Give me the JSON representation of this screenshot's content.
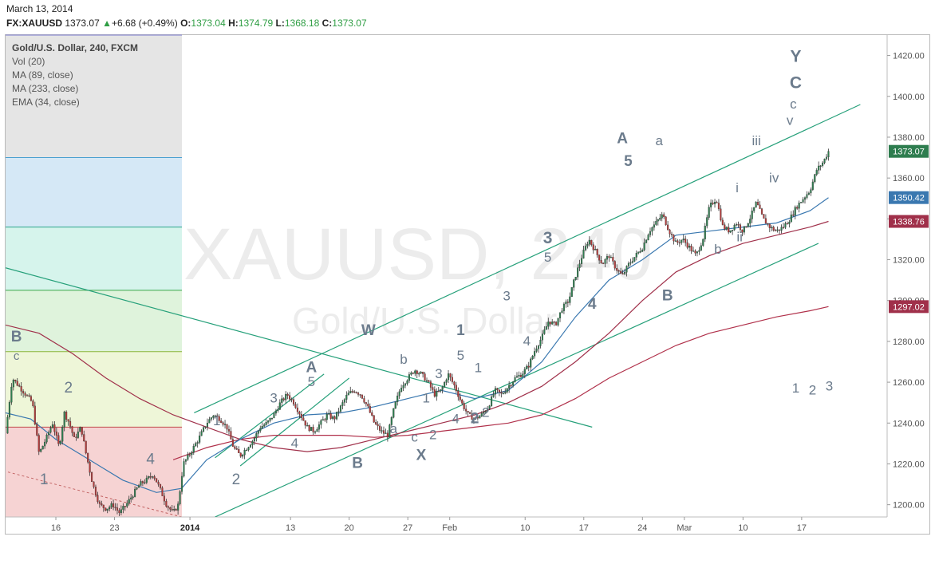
{
  "header": {
    "date": "March 13, 2014",
    "symbol": "FX:XAUUSD",
    "last": "1373.07",
    "change": "+6.68 (+0.49%)",
    "open_label": "O:",
    "open": "1373.04",
    "high_label": "H:",
    "high": "1374.79",
    "low_label": "L:",
    "low": "1368.18",
    "close_label": "C:",
    "close": "1373.07"
  },
  "legend": {
    "title": "Gold/U.S. Dollar, 240, FXCM",
    "indicators": [
      "Vol (20)",
      "MA (89, close)",
      "MA (233, close)",
      "EMA (34, close)"
    ]
  },
  "watermark": {
    "symbol": "XAUUSD, 240",
    "name": "Gold/U.S. Dollar"
  },
  "colors": {
    "up": "#2e7d4f",
    "down": "#b33a3a",
    "ma89": "#a0304a",
    "ma233": "#b0304a",
    "ema34": "#3a78b0",
    "channel": "#26a07a",
    "label": "#6b7b8c"
  },
  "chart_data": {
    "type": "candlestick",
    "y_range": [
      1194,
      1430
    ],
    "x_axis_start_label": "Dec 10 2013",
    "y_ticks": [
      1200,
      1220,
      1240,
      1260,
      1280,
      1300,
      1320,
      1340,
      1360,
      1380,
      1400,
      1420
    ],
    "x_ticks": [
      {
        "label": "16",
        "t": 6
      },
      {
        "label": "23",
        "t": 13
      },
      {
        "label": "2014",
        "t": 22,
        "bold": true
      },
      {
        "label": "13",
        "t": 34
      },
      {
        "label": "20",
        "t": 41
      },
      {
        "label": "27",
        "t": 48
      },
      {
        "label": "Feb",
        "t": 53
      },
      {
        "label": "10",
        "t": 62
      },
      {
        "label": "17",
        "t": 69
      },
      {
        "label": "24",
        "t": 76
      },
      {
        "label": "Mar",
        "t": 81
      },
      {
        "label": "10",
        "t": 88
      },
      {
        "label": "17",
        "t": 95
      }
    ],
    "price_labels": [
      {
        "value": 1373.07,
        "text": "1373.07",
        "color": "#2e7d4f"
      },
      {
        "value": 1350.42,
        "text": "1350.42",
        "color": "#3a78b0"
      },
      {
        "value": 1338.76,
        "text": "1338.76",
        "color": "#a0304a"
      },
      {
        "value": 1297.02,
        "text": "1297.02",
        "color": "#a0304a"
      }
    ],
    "close_path": [
      [
        0,
        1235
      ],
      [
        0.8,
        1262
      ],
      [
        1.6,
        1258
      ],
      [
        2.4,
        1254
      ],
      [
        3.2,
        1250
      ],
      [
        4,
        1225
      ],
      [
        4.8,
        1232
      ],
      [
        5.6,
        1240
      ],
      [
        6.4,
        1228
      ],
      [
        7,
        1245
      ],
      [
        7.6,
        1240
      ],
      [
        8.2,
        1232
      ],
      [
        9,
        1238
      ],
      [
        9.6,
        1225
      ],
      [
        10.4,
        1210
      ],
      [
        11.2,
        1200
      ],
      [
        12,
        1198
      ],
      [
        12.8,
        1200
      ],
      [
        13.6,
        1196
      ],
      [
        14.4,
        1200
      ],
      [
        15.2,
        1205
      ],
      [
        16,
        1210
      ],
      [
        16.8,
        1212
      ],
      [
        17.6,
        1215
      ],
      [
        18.4,
        1208
      ],
      [
        19.2,
        1200
      ],
      [
        20,
        1196
      ],
      [
        20.6,
        1200
      ],
      [
        21.2,
        1220
      ],
      [
        22,
        1225
      ],
      [
        23,
        1232
      ],
      [
        24,
        1240
      ],
      [
        24.8,
        1244
      ],
      [
        25.6,
        1242
      ],
      [
        26.4,
        1238
      ],
      [
        27.2,
        1228
      ],
      [
        28,
        1224
      ],
      [
        28.8,
        1228
      ],
      [
        29.6,
        1232
      ],
      [
        30.4,
        1238
      ],
      [
        31.2,
        1240
      ],
      [
        32,
        1244
      ],
      [
        32.8,
        1250
      ],
      [
        33.6,
        1254
      ],
      [
        34.4,
        1250
      ],
      [
        35.2,
        1244
      ],
      [
        36,
        1238
      ],
      [
        36.8,
        1236
      ],
      [
        37.6,
        1240
      ],
      [
        38.4,
        1244
      ],
      [
        39.2,
        1242
      ],
      [
        40,
        1248
      ],
      [
        40.8,
        1254
      ],
      [
        41.6,
        1256
      ],
      [
        42.4,
        1254
      ],
      [
        43.2,
        1248
      ],
      [
        44,
        1240
      ],
      [
        44.8,
        1236
      ],
      [
        45.6,
        1234
      ],
      [
        46.4,
        1248
      ],
      [
        47.2,
        1258
      ],
      [
        48,
        1262
      ],
      [
        48.8,
        1266
      ],
      [
        49.6,
        1264
      ],
      [
        50.4,
        1260
      ],
      [
        51.2,
        1254
      ],
      [
        52,
        1256
      ],
      [
        52.8,
        1264
      ],
      [
        53.6,
        1258
      ],
      [
        54.4,
        1250
      ],
      [
        55.2,
        1244
      ],
      [
        56,
        1242
      ],
      [
        56.8,
        1244
      ],
      [
        57.6,
        1248
      ],
      [
        58.4,
        1256
      ],
      [
        59.2,
        1254
      ],
      [
        60,
        1258
      ],
      [
        60.8,
        1262
      ],
      [
        61.6,
        1264
      ],
      [
        62.4,
        1268
      ],
      [
        63.2,
        1276
      ],
      [
        64,
        1282
      ],
      [
        64.8,
        1290
      ],
      [
        65.6,
        1288
      ],
      [
        66.4,
        1296
      ],
      [
        67.2,
        1300
      ],
      [
        68,
        1312
      ],
      [
        68.8,
        1322
      ],
      [
        69.6,
        1330
      ],
      [
        70.4,
        1324
      ],
      [
        71.2,
        1318
      ],
      [
        72,
        1322
      ],
      [
        72.8,
        1316
      ],
      [
        73.6,
        1312
      ],
      [
        74.4,
        1318
      ],
      [
        75.2,
        1322
      ],
      [
        76,
        1326
      ],
      [
        76.8,
        1334
      ],
      [
        77.6,
        1338
      ],
      [
        78.4,
        1342
      ],
      [
        79.2,
        1334
      ],
      [
        80,
        1328
      ],
      [
        80.8,
        1330
      ],
      [
        81.6,
        1326
      ],
      [
        82.4,
        1322
      ],
      [
        83.2,
        1330
      ],
      [
        84,
        1346
      ],
      [
        84.8,
        1350
      ],
      [
        85.6,
        1336
      ],
      [
        86.4,
        1334
      ],
      [
        87.2,
        1338
      ],
      [
        88,
        1334
      ],
      [
        88.8,
        1340
      ],
      [
        89.6,
        1348
      ],
      [
        90.4,
        1340
      ],
      [
        91.2,
        1336
      ],
      [
        92,
        1334
      ],
      [
        92.8,
        1336
      ],
      [
        93.6,
        1340
      ],
      [
        94.4,
        1346
      ],
      [
        95.2,
        1350
      ],
      [
        96,
        1354
      ],
      [
        96.8,
        1364
      ],
      [
        97.6,
        1368
      ],
      [
        98.2,
        1373.07
      ]
    ],
    "ema34": [
      [
        0,
        1245
      ],
      [
        3,
        1242
      ],
      [
        6,
        1232
      ],
      [
        10,
        1222
      ],
      [
        14,
        1212
      ],
      [
        18,
        1206
      ],
      [
        21,
        1208
      ],
      [
        24,
        1222
      ],
      [
        28,
        1232
      ],
      [
        32,
        1240
      ],
      [
        36,
        1244
      ],
      [
        40,
        1245
      ],
      [
        44,
        1248
      ],
      [
        48,
        1252
      ],
      [
        52,
        1256
      ],
      [
        56,
        1252
      ],
      [
        60,
        1256
      ],
      [
        64,
        1270
      ],
      [
        68,
        1292
      ],
      [
        72,
        1310
      ],
      [
        76,
        1320
      ],
      [
        80,
        1332
      ],
      [
        84,
        1334
      ],
      [
        88,
        1336
      ],
      [
        92,
        1338
      ],
      [
        96,
        1344
      ],
      [
        98.2,
        1350.42
      ]
    ],
    "ma89": [
      [
        0,
        1288
      ],
      [
        4,
        1284
      ],
      [
        8,
        1274
      ],
      [
        12,
        1262
      ],
      [
        16,
        1252
      ],
      [
        20,
        1244
      ],
      [
        24,
        1238
      ],
      [
        28,
        1232
      ],
      [
        32,
        1228
      ],
      [
        36,
        1226
      ],
      [
        40,
        1228
      ],
      [
        44,
        1232
      ],
      [
        48,
        1236
      ],
      [
        52,
        1240
      ],
      [
        56,
        1244
      ],
      [
        60,
        1250
      ],
      [
        64,
        1258
      ],
      [
        68,
        1270
      ],
      [
        72,
        1284
      ],
      [
        76,
        1300
      ],
      [
        80,
        1314
      ],
      [
        84,
        1322
      ],
      [
        88,
        1328
      ],
      [
        92,
        1332
      ],
      [
        96,
        1336
      ],
      [
        98.2,
        1338.76
      ]
    ],
    "ma233": [
      [
        20,
        1222
      ],
      [
        24,
        1228
      ],
      [
        28,
        1232
      ],
      [
        32,
        1234
      ],
      [
        36,
        1234
      ],
      [
        40,
        1234
      ],
      [
        44,
        1233
      ],
      [
        48,
        1234
      ],
      [
        52,
        1236
      ],
      [
        56,
        1238
      ],
      [
        60,
        1240
      ],
      [
        64,
        1244
      ],
      [
        68,
        1252
      ],
      [
        72,
        1262
      ],
      [
        76,
        1270
      ],
      [
        80,
        1278
      ],
      [
        84,
        1284
      ],
      [
        88,
        1288
      ],
      [
        92,
        1292
      ],
      [
        96,
        1295
      ],
      [
        98.2,
        1297.02
      ]
    ],
    "channel_lines": [
      [
        [
          22.5,
          1245
        ],
        [
          102,
          1396
        ]
      ],
      [
        [
          25,
          1194
        ],
        [
          97,
          1328
        ]
      ],
      [
        [
          0,
          1316
        ],
        [
          70,
          1238
        ]
      ],
      [
        [
          25,
          1223
        ],
        [
          38,
          1264
        ]
      ],
      [
        [
          28,
          1219
        ],
        [
          41,
          1262
        ]
      ]
    ],
    "fib_levels": [
      1430,
      1370,
      1336,
      1305,
      1275,
      1238,
      1194
    ],
    "wave_labels": [
      {
        "text": "B",
        "t": 1.3,
        "p": 1280,
        "bold": true,
        "size": 19
      },
      {
        "text": "c",
        "t": 1.3,
        "p": 1271,
        "size": 15
      },
      {
        "text": "2",
        "t": 7.5,
        "p": 1255,
        "size": 19
      },
      {
        "text": "1",
        "t": 4.6,
        "p": 1210,
        "size": 19
      },
      {
        "text": "4",
        "t": 17.3,
        "p": 1220,
        "size": 19
      },
      {
        "text": "1",
        "t": 25.2,
        "p": 1239,
        "size": 17
      },
      {
        "text": "2",
        "t": 27.5,
        "p": 1210,
        "size": 19
      },
      {
        "text": "3",
        "t": 32.0,
        "p": 1250,
        "size": 17
      },
      {
        "text": "4",
        "t": 34.5,
        "p": 1228,
        "size": 17
      },
      {
        "text": "A",
        "t": 36.5,
        "p": 1265,
        "bold": true,
        "size": 19
      },
      {
        "text": "5",
        "t": 36.5,
        "p": 1258,
        "size": 17
      },
      {
        "text": "B",
        "t": 42.0,
        "p": 1218,
        "bold": true,
        "size": 19
      },
      {
        "text": "W",
        "t": 43.3,
        "p": 1283,
        "bold": true,
        "size": 19
      },
      {
        "text": "a",
        "t": 46.3,
        "p": 1235,
        "size": 17
      },
      {
        "text": "b",
        "t": 47.5,
        "p": 1269,
        "size": 17
      },
      {
        "text": "c",
        "t": 48.8,
        "p": 1231,
        "size": 17
      },
      {
        "text": "1",
        "t": 50.2,
        "p": 1250,
        "size": 17
      },
      {
        "text": "2",
        "t": 51.0,
        "p": 1232,
        "size": 17
      },
      {
        "text": "X",
        "t": 49.6,
        "p": 1222,
        "bold": true,
        "size": 19
      },
      {
        "text": "3",
        "t": 51.7,
        "p": 1262,
        "size": 17
      },
      {
        "text": "4",
        "t": 53.7,
        "p": 1240,
        "size": 17
      },
      {
        "text": "2",
        "t": 56.0,
        "p": 1240,
        "bold": true,
        "size": 19
      },
      {
        "text": "2",
        "t": 57.3,
        "p": 1243,
        "size": 17
      },
      {
        "text": "1",
        "t": 56.4,
        "p": 1265,
        "size": 17
      },
      {
        "text": "1",
        "t": 54.3,
        "p": 1283,
        "bold": true,
        "size": 19
      },
      {
        "text": "5",
        "t": 54.3,
        "p": 1271,
        "size": 17
      },
      {
        "text": "3",
        "t": 59.8,
        "p": 1300,
        "size": 17
      },
      {
        "text": "4",
        "t": 62.2,
        "p": 1278,
        "size": 17
      },
      {
        "text": "3",
        "t": 64.7,
        "p": 1328,
        "bold": true,
        "size": 21
      },
      {
        "text": "5",
        "t": 64.7,
        "p": 1319,
        "size": 17
      },
      {
        "text": "4",
        "t": 70.0,
        "p": 1296,
        "bold": true,
        "size": 19
      },
      {
        "text": "A",
        "t": 73.6,
        "p": 1377,
        "bold": true,
        "size": 19
      },
      {
        "text": "5",
        "t": 74.3,
        "p": 1366,
        "bold": true,
        "size": 19
      },
      {
        "text": "a",
        "t": 78.0,
        "p": 1376,
        "size": 17
      },
      {
        "text": "B",
        "t": 79.0,
        "p": 1300,
        "bold": true,
        "size": 19
      },
      {
        "text": "b",
        "t": 85.0,
        "p": 1323,
        "size": 17
      },
      {
        "text": "i",
        "t": 87.3,
        "p": 1353,
        "size": 17
      },
      {
        "text": "ii",
        "t": 87.6,
        "p": 1329,
        "size": 17
      },
      {
        "text": "iii",
        "t": 89.6,
        "p": 1376,
        "size": 17
      },
      {
        "text": "iv",
        "t": 91.7,
        "p": 1358,
        "size": 17
      },
      {
        "text": "v",
        "t": 93.6,
        "p": 1386,
        "size": 17
      },
      {
        "text": "c",
        "t": 94.0,
        "p": 1394,
        "size": 17
      },
      {
        "text": "C",
        "t": 94.3,
        "p": 1404,
        "bold": true,
        "size": 21
      },
      {
        "text": "Y",
        "t": 94.3,
        "p": 1417,
        "bold": true,
        "size": 21
      },
      {
        "text": "1",
        "t": 94.3,
        "p": 1255,
        "size": 17
      },
      {
        "text": "2",
        "t": 96.3,
        "p": 1254,
        "size": 17
      },
      {
        "text": "3",
        "t": 98.3,
        "p": 1256,
        "size": 17
      }
    ]
  }
}
